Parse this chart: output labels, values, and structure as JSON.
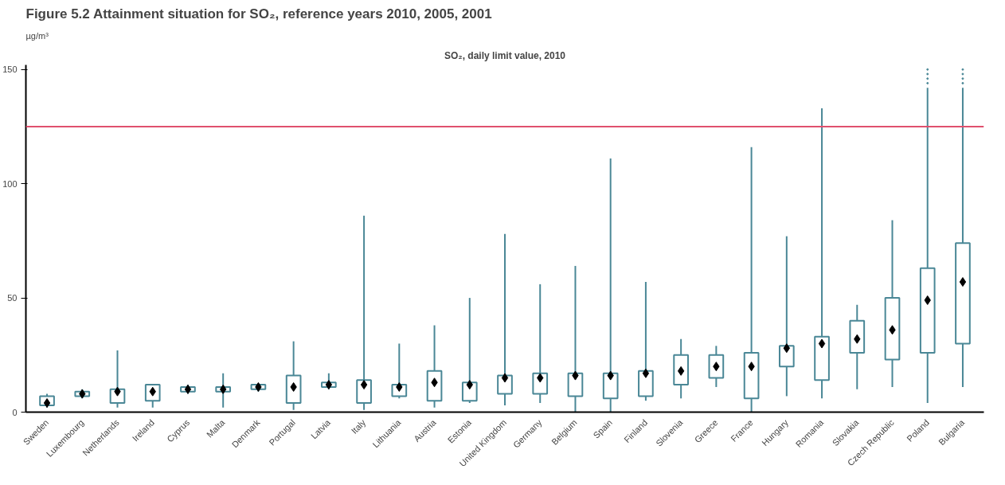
{
  "chart_data": {
    "type": "box",
    "title": "Figure 5.2    Attainment situation for SO₂, reference years 2010, 2005, 2001",
    "subtitle": "SO₂, daily limit value, 2010",
    "ylabel": "µg/m³",
    "categories": [
      "Sweden",
      "Luxembourg",
      "Netherlands",
      "Ireland",
      "Cyprus",
      "Malta",
      "Denmark",
      "Portugal",
      "Latvia",
      "Italy",
      "Lithuania",
      "Austria",
      "Estonia",
      "United Kingdom",
      "Germany",
      "Belgium",
      "Spain",
      "Finland",
      "Slovenia",
      "Greece",
      "France",
      "Hungary",
      "Romania",
      "Slovakia",
      "Czech Republic",
      "Poland",
      "Bulgaria"
    ],
    "series": [
      {
        "color": "#4a8796",
        "boxes": [
          {
            "low": 2,
            "q1": 3,
            "median": 4,
            "q3": 7,
            "high": 8
          },
          {
            "low": 6,
            "q1": 7,
            "median": 8,
            "q3": 9,
            "high": 10
          },
          {
            "low": 2,
            "q1": 4,
            "median": 9,
            "q3": 10,
            "high": 27
          },
          {
            "low": 2,
            "q1": 5,
            "median": 9,
            "q3": 12,
            "high": 12
          },
          {
            "low": 8,
            "q1": 9,
            "median": 10,
            "q3": 11,
            "high": 12
          },
          {
            "low": 2,
            "q1": 9,
            "median": 10,
            "q3": 11,
            "high": 17
          },
          {
            "low": 9,
            "q1": 10,
            "median": 11,
            "q3": 12,
            "high": 12
          },
          {
            "low": 1,
            "q1": 4,
            "median": 11,
            "q3": 16,
            "high": 31
          },
          {
            "low": 10,
            "q1": 11,
            "median": 12,
            "q3": 13,
            "high": 17
          },
          {
            "low": 1,
            "q1": 4,
            "median": 12,
            "q3": 14,
            "high": 86
          },
          {
            "low": 6,
            "q1": 7,
            "median": 11,
            "q3": 12,
            "high": 30
          },
          {
            "low": 2,
            "q1": 5,
            "median": 13,
            "q3": 18,
            "high": 38
          },
          {
            "low": 4,
            "q1": 5,
            "median": 12,
            "q3": 13,
            "high": 50
          },
          {
            "low": 3,
            "q1": 8,
            "median": 15,
            "q3": 16,
            "high": 78
          },
          {
            "low": 4,
            "q1": 8,
            "median": 15,
            "q3": 17,
            "high": 56
          },
          {
            "low": 0,
            "q1": 7,
            "median": 16,
            "q3": 17,
            "high": 64
          },
          {
            "low": 0,
            "q1": 6,
            "median": 16,
            "q3": 17,
            "high": 111
          },
          {
            "low": 5,
            "q1": 7,
            "median": 17,
            "q3": 18,
            "high": 57
          },
          {
            "low": 6,
            "q1": 12,
            "median": 18,
            "q3": 25,
            "high": 32
          },
          {
            "low": 11,
            "q1": 15,
            "median": 20,
            "q3": 25,
            "high": 29
          },
          {
            "low": 0,
            "q1": 6,
            "median": 20,
            "q3": 26,
            "high": 116
          },
          {
            "low": 7,
            "q1": 20,
            "median": 28,
            "q3": 29,
            "high": 77
          },
          {
            "low": 6,
            "q1": 14,
            "median": 30,
            "q3": 33,
            "high": 133
          },
          {
            "low": 10,
            "q1": 26,
            "median": 32,
            "q3": 40,
            "high": 47
          },
          {
            "low": 11,
            "q1": 23,
            "median": 36,
            "q3": 50,
            "high": 84
          },
          {
            "low": 4,
            "q1": 26,
            "median": 49,
            "q3": 63,
            "high": 142,
            "outliers": [
              144,
              146,
              148,
              150
            ]
          },
          {
            "low": 11,
            "q1": 30,
            "median": 57,
            "q3": 74,
            "high": 142,
            "outliers": [
              144,
              146,
              148,
              150
            ]
          }
        ]
      }
    ],
    "ylim": [
      0,
      152
    ],
    "yticks": [
      0,
      50,
      100,
      150
    ],
    "ref_lines": [
      {
        "axis": "y",
        "value": 125,
        "color": "#e0506e"
      }
    ]
  }
}
